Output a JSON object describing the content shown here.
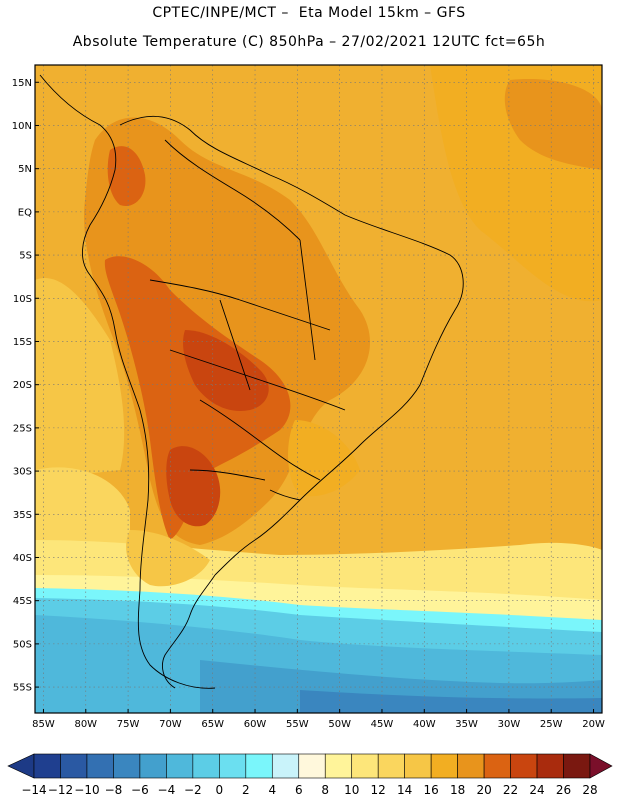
{
  "header": {
    "line1": "CPTEC/INPE/MCT –  Eta Model 15km – GFS",
    "line2": "Absolute Temperature (C) 850hPa – 27/02/2021 12UTC fct=65h"
  },
  "map": {
    "lon_min": -86,
    "lon_max": -19,
    "lat_min": -58,
    "lat_max": 17,
    "y_axis_labels": [
      {
        "lat": 15,
        "text": "15N"
      },
      {
        "lat": 10,
        "text": "10N"
      },
      {
        "lat": 5,
        "text": "5N"
      },
      {
        "lat": 0,
        "text": "EQ"
      },
      {
        "lat": -5,
        "text": "5S"
      },
      {
        "lat": -10,
        "text": "10S"
      },
      {
        "lat": -15,
        "text": "15S"
      },
      {
        "lat": -20,
        "text": "20S"
      },
      {
        "lat": -25,
        "text": "25S"
      },
      {
        "lat": -30,
        "text": "30S"
      },
      {
        "lat": -35,
        "text": "35S"
      },
      {
        "lat": -40,
        "text": "40S"
      },
      {
        "lat": -45,
        "text": "45S"
      },
      {
        "lat": -50,
        "text": "50S"
      },
      {
        "lat": -55,
        "text": "55S"
      }
    ],
    "x_axis_labels": [
      {
        "lon": -85,
        "text": "85W"
      },
      {
        "lon": -80,
        "text": "80W"
      },
      {
        "lon": -75,
        "text": "75W"
      },
      {
        "lon": -70,
        "text": "70W"
      },
      {
        "lon": -65,
        "text": "65W"
      },
      {
        "lon": -60,
        "text": "60W"
      },
      {
        "lon": -55,
        "text": "55W"
      },
      {
        "lon": -50,
        "text": "50W"
      },
      {
        "lon": -45,
        "text": "45W"
      },
      {
        "lon": -40,
        "text": "40W"
      },
      {
        "lon": -35,
        "text": "35W"
      },
      {
        "lon": -30,
        "text": "30W"
      },
      {
        "lon": -25,
        "text": "25W"
      },
      {
        "lon": -20,
        "text": "20W"
      }
    ]
  },
  "colorbar": {
    "labels": [
      "-14",
      "-12",
      "-10",
      "-8",
      "-6",
      "-4",
      "-2",
      "0",
      "2",
      "4",
      "6",
      "8",
      "10",
      "12",
      "14",
      "16",
      "18",
      "20",
      "22",
      "24",
      "26",
      "28"
    ],
    "colors": [
      "#1f3f8f",
      "#2a59a3",
      "#3370b2",
      "#3a86bf",
      "#43a0cd",
      "#4fb8db",
      "#5ccde6",
      "#6bdff0",
      "#7af6fb",
      "#c9f3fa",
      "#fff8dc",
      "#fff49a",
      "#fde67a",
      "#fad65e",
      "#f6c646",
      "#f2ae22",
      "#e8941c",
      "#db6312",
      "#c9450f",
      "#a92b0d",
      "#7a1810"
    ],
    "low_color": "#1d3a86",
    "high_color": "#7a0f2a"
  },
  "colors": {
    "base": "#f0b030",
    "warm": "#e8941c",
    "hot": "#db6312",
    "hotter": "#c9450f",
    "light_yellow": "#f6c646",
    "pale_yellow": "#fde67a",
    "cyan": "#7af6fb",
    "light_blue": "#5ccde6",
    "mid_blue": "#43a0cd",
    "coast": "#000000"
  }
}
